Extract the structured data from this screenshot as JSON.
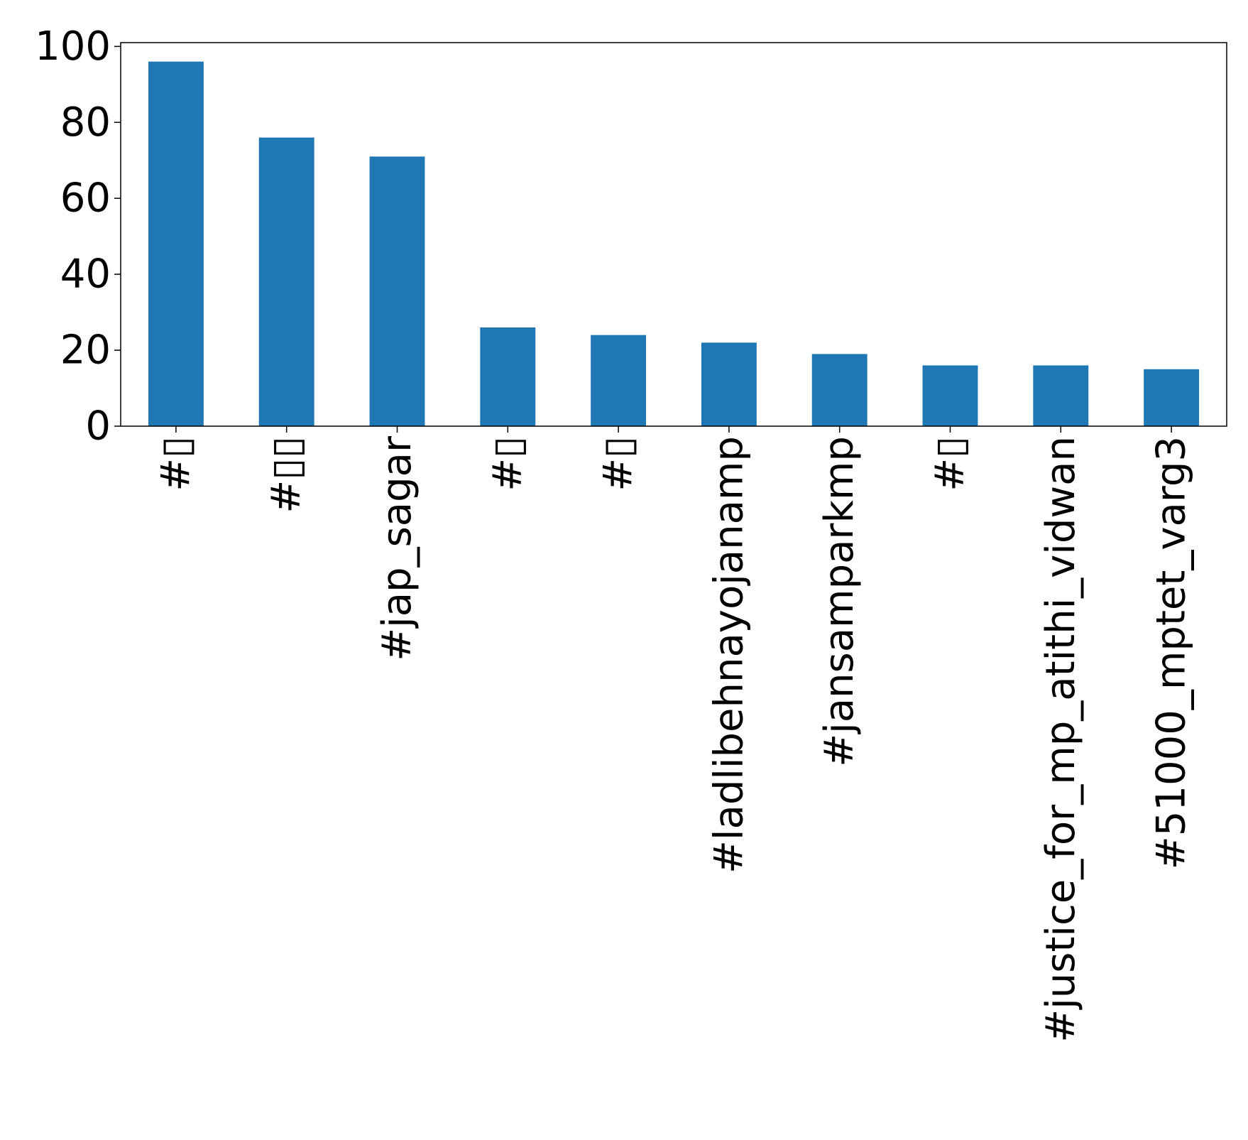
{
  "chart_data": {
    "type": "bar",
    "title": "",
    "xlabel": "",
    "ylabel": "",
    "categories": [
      "#▯",
      "#▯▯",
      "#jap_sagar",
      "#▯",
      "#▯",
      "#ladlibehnayojanamp",
      "#jansamparkmp",
      "#▯",
      "#justice_for_mp_atithi_vidwan",
      "#51000_mptet_varg3"
    ],
    "values": [
      96,
      76,
      71,
      26,
      24,
      22,
      19,
      16,
      16,
      15
    ],
    "ylim": [
      0,
      101
    ],
    "yticks": [
      0,
      20,
      40,
      60,
      80,
      100
    ],
    "tick_label_rotation": 90,
    "grid": false,
    "legend": "none",
    "colors": {
      "bar": "#1f77b4",
      "axes": "#000000",
      "background": "#ffffff"
    }
  }
}
